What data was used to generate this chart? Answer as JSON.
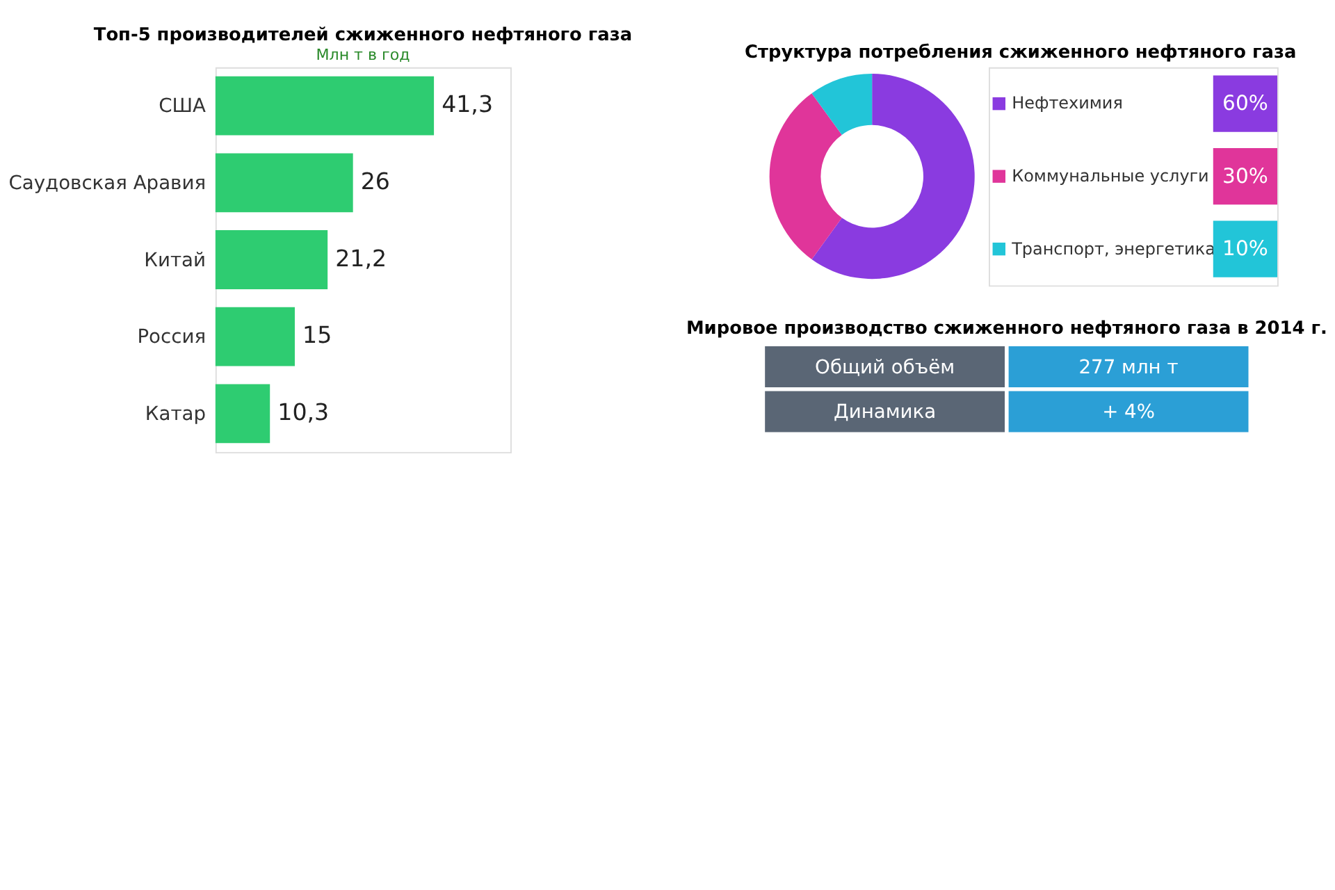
{
  "chart_data": [
    {
      "type": "bar",
      "orientation": "horizontal",
      "title": "Топ-5 производителей сжиженного нефтяного газа",
      "subtitle": "Млн т в год",
      "categories": [
        "США",
        "Саудовская Аравия",
        "Китай",
        "Россия",
        "Катар"
      ],
      "values": [
        41.3,
        26,
        21.2,
        15,
        10.3
      ],
      "value_labels": [
        "41,3",
        "26",
        "21,2",
        "15",
        "10,3"
      ],
      "color": "#2ecc71"
    },
    {
      "type": "donut",
      "title": "Структура потребления сжиженного нефтяного газа",
      "legend": "right",
      "categories": [
        "Нефтехимия",
        "Коммунальные услуги",
        "Транспорт, энергетика"
      ],
      "values": [
        60,
        30,
        10
      ],
      "value_labels": [
        "60%",
        "30%",
        "10%"
      ],
      "colors": [
        "#8a3be0",
        "#e0359a",
        "#22c5d8"
      ]
    },
    {
      "type": "other",
      "title": "Мировое производство сжиженного нефтяного газа в 2014 г.",
      "annotations": [
        "Общий объём",
        "277 млн т",
        "Динамика",
        "+ 4%"
      ]
    }
  ]
}
